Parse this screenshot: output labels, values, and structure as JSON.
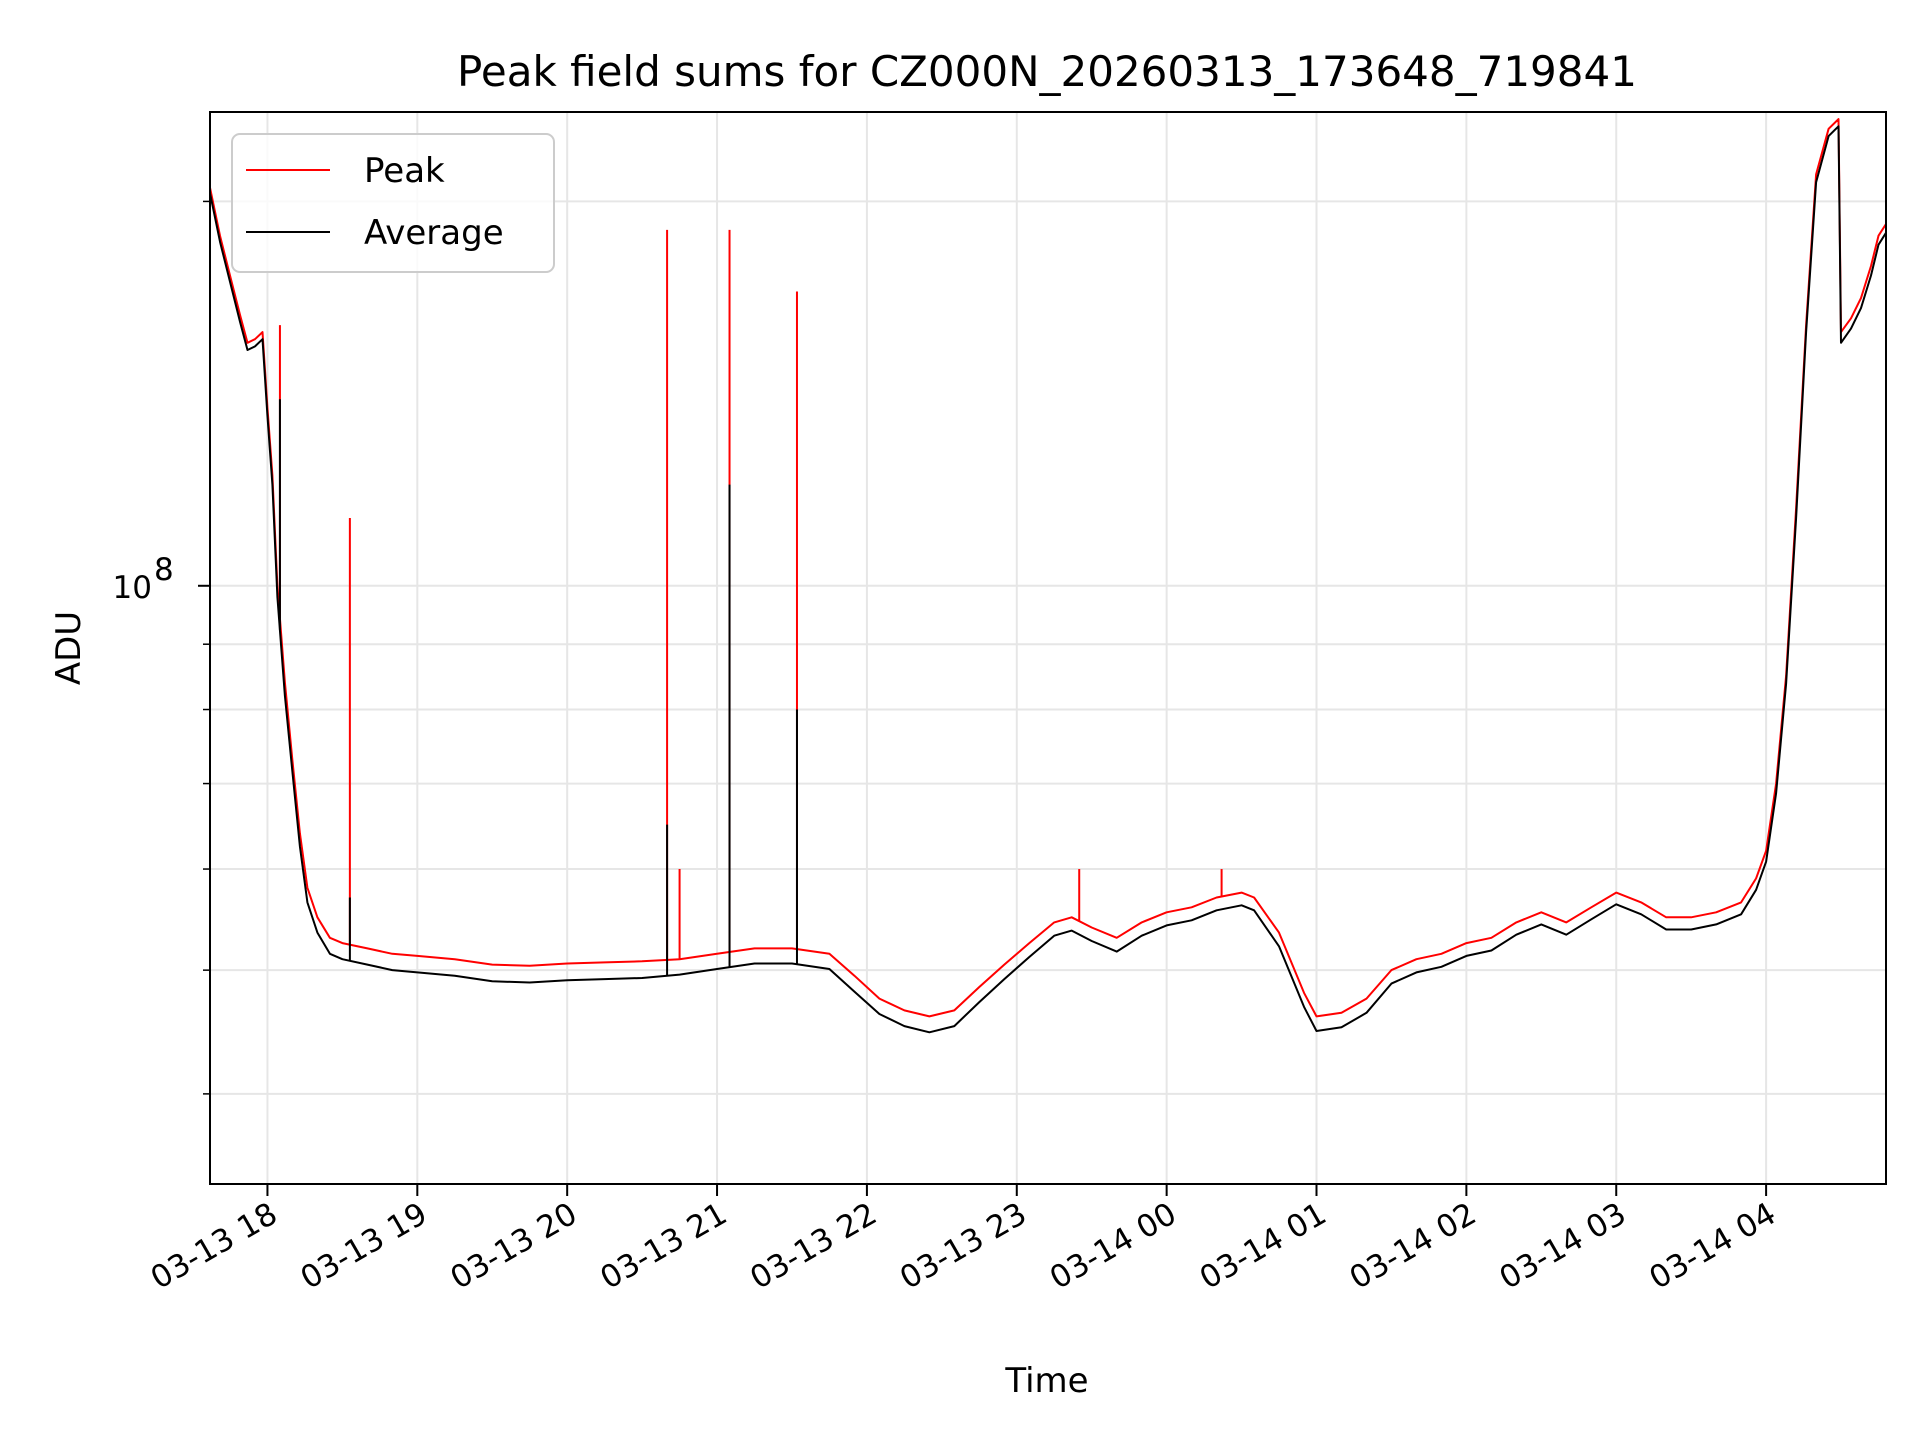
{
  "chart_data": {
    "type": "line",
    "title": "Peak field sums for CZ000N_20260313_173648_719841",
    "xlabel": "Time",
    "ylabel": "ADU",
    "y_scale": "log",
    "xlim": [
      "2026-03-13 17:37",
      "2026-03-14 04:48"
    ],
    "ylim": [
      34000000,
      235000000
    ],
    "grid": true,
    "legend_position": "top-left",
    "x_ticks": [
      "03-13 18",
      "03-13 19",
      "03-13 20",
      "03-13 21",
      "03-13 22",
      "03-13 23",
      "03-14 00",
      "03-14 01",
      "03-14 02",
      "03-14 03",
      "03-14 04"
    ],
    "y_ticks": [
      {
        "label": "10",
        "exponent": "8",
        "value": 100000000
      }
    ],
    "y_minor_ticks": [
      40000000,
      50000000,
      60000000,
      70000000,
      80000000,
      90000000,
      200000000
    ],
    "series": [
      {
        "name": "Peak",
        "color": "#ff0000",
        "points": [
          [
            "2026-03-13 17:37",
            205000000
          ],
          [
            "2026-03-13 17:41",
            188000000
          ],
          [
            "2026-03-13 17:45",
            175000000
          ],
          [
            "2026-03-13 17:49",
            163000000
          ],
          [
            "2026-03-13 17:52",
            155000000
          ],
          [
            "2026-03-13 17:55",
            156000000
          ],
          [
            "2026-03-13 17:58",
            158000000
          ],
          [
            "2026-03-13 18:00",
            138000000
          ],
          [
            "2026-03-13 18:02",
            122000000
          ],
          [
            "2026-03-13 18:04",
            100000000
          ],
          [
            "2026-03-13 18:07",
            84000000
          ],
          [
            "2026-03-13 18:10",
            73000000
          ],
          [
            "2026-03-13 18:13",
            64000000
          ],
          [
            "2026-03-13 18:16",
            58000000
          ],
          [
            "2026-03-13 18:20",
            55000000
          ],
          [
            "2026-03-13 18:25",
            53000000
          ],
          [
            "2026-03-13 18:30",
            52500000
          ],
          [
            "2026-03-13 18:40",
            52000000
          ],
          [
            "2026-03-13 18:50",
            51500000
          ],
          [
            "2026-03-13 19:00",
            51300000
          ],
          [
            "2026-03-13 19:15",
            51000000
          ],
          [
            "2026-03-13 19:30",
            50500000
          ],
          [
            "2026-03-13 19:45",
            50400000
          ],
          [
            "2026-03-13 20:00",
            50600000
          ],
          [
            "2026-03-13 20:15",
            50700000
          ],
          [
            "2026-03-13 20:30",
            50800000
          ],
          [
            "2026-03-13 20:45",
            51000000
          ],
          [
            "2026-03-13 21:00",
            51500000
          ],
          [
            "2026-03-13 21:15",
            52000000
          ],
          [
            "2026-03-13 21:30",
            52000000
          ],
          [
            "2026-03-13 21:45",
            51500000
          ],
          [
            "2026-03-13 21:55",
            49500000
          ],
          [
            "2026-03-13 22:05",
            47500000
          ],
          [
            "2026-03-13 22:15",
            46500000
          ],
          [
            "2026-03-13 22:25",
            46000000
          ],
          [
            "2026-03-13 22:35",
            46500000
          ],
          [
            "2026-03-13 22:45",
            48500000
          ],
          [
            "2026-03-13 22:55",
            50500000
          ],
          [
            "2026-03-13 23:05",
            52500000
          ],
          [
            "2026-03-13 23:15",
            54500000
          ],
          [
            "2026-03-13 23:22",
            55000000
          ],
          [
            "2026-03-13 23:30",
            54000000
          ],
          [
            "2026-03-13 23:40",
            53000000
          ],
          [
            "2026-03-13 23:50",
            54500000
          ],
          [
            "2026-03-14 00:00",
            55500000
          ],
          [
            "2026-03-14 00:10",
            56000000
          ],
          [
            "2026-03-14 00:20",
            57000000
          ],
          [
            "2026-03-14 00:30",
            57500000
          ],
          [
            "2026-03-14 00:35",
            57000000
          ],
          [
            "2026-03-14 00:45",
            53500000
          ],
          [
            "2026-03-14 00:55",
            48000000
          ],
          [
            "2026-03-14 01:00",
            46000000
          ],
          [
            "2026-03-14 01:10",
            46300000
          ],
          [
            "2026-03-14 01:20",
            47500000
          ],
          [
            "2026-03-14 01:30",
            50000000
          ],
          [
            "2026-03-14 01:40",
            51000000
          ],
          [
            "2026-03-14 01:50",
            51500000
          ],
          [
            "2026-03-14 02:00",
            52500000
          ],
          [
            "2026-03-14 02:10",
            53000000
          ],
          [
            "2026-03-14 02:20",
            54500000
          ],
          [
            "2026-03-14 02:30",
            55500000
          ],
          [
            "2026-03-14 02:40",
            54500000
          ],
          [
            "2026-03-14 02:50",
            56000000
          ],
          [
            "2026-03-14 03:00",
            57500000
          ],
          [
            "2026-03-14 03:10",
            56500000
          ],
          [
            "2026-03-14 03:20",
            55000000
          ],
          [
            "2026-03-14 03:30",
            55000000
          ],
          [
            "2026-03-14 03:40",
            55500000
          ],
          [
            "2026-03-14 03:50",
            56500000
          ],
          [
            "2026-03-14 03:56",
            59000000
          ],
          [
            "2026-03-14 04:00",
            62000000
          ],
          [
            "2026-03-14 04:04",
            70000000
          ],
          [
            "2026-03-14 04:08",
            85000000
          ],
          [
            "2026-03-14 04:12",
            115000000
          ],
          [
            "2026-03-14 04:16",
            160000000
          ],
          [
            "2026-03-14 04:20",
            210000000
          ],
          [
            "2026-03-14 04:25",
            228000000
          ],
          [
            "2026-03-14 04:29",
            232000000
          ],
          [
            "2026-03-14 04:30",
            158000000
          ],
          [
            "2026-03-14 04:34",
            162000000
          ],
          [
            "2026-03-14 04:38",
            168000000
          ],
          [
            "2026-03-14 04:42",
            178000000
          ],
          [
            "2026-03-14 04:45",
            188000000
          ],
          [
            "2026-03-14 04:48",
            192000000
          ]
        ],
        "spikes": [
          [
            "2026-03-13 18:05",
            160000000
          ],
          [
            "2026-03-13 18:33",
            113000000
          ],
          [
            "2026-03-13 20:40",
            190000000
          ],
          [
            "2026-03-13 21:05",
            190000000
          ],
          [
            "2026-03-13 21:32",
            170000000
          ],
          [
            "2026-03-13 20:45",
            60000000
          ],
          [
            "2026-03-13 23:25",
            60000000
          ],
          [
            "2026-03-14 00:22",
            60000000
          ]
        ]
      },
      {
        "name": "Average",
        "color": "#000000",
        "points": [
          [
            "2026-03-13 17:37",
            203000000
          ],
          [
            "2026-03-13 17:41",
            186000000
          ],
          [
            "2026-03-13 17:45",
            173000000
          ],
          [
            "2026-03-13 17:49",
            161000000
          ],
          [
            "2026-03-13 17:52",
            153000000
          ],
          [
            "2026-03-13 17:55",
            154000000
          ],
          [
            "2026-03-13 17:58",
            156000000
          ],
          [
            "2026-03-13 18:00",
            136000000
          ],
          [
            "2026-03-13 18:02",
            120000000
          ],
          [
            "2026-03-13 18:04",
            98000000
          ],
          [
            "2026-03-13 18:07",
            82000000
          ],
          [
            "2026-03-13 18:10",
            71500000
          ],
          [
            "2026-03-13 18:13",
            62500000
          ],
          [
            "2026-03-13 18:16",
            56500000
          ],
          [
            "2026-03-13 18:20",
            53500000
          ],
          [
            "2026-03-13 18:25",
            51500000
          ],
          [
            "2026-03-13 18:30",
            51000000
          ],
          [
            "2026-03-13 18:40",
            50500000
          ],
          [
            "2026-03-13 18:50",
            50000000
          ],
          [
            "2026-03-13 19:00",
            49800000
          ],
          [
            "2026-03-13 19:15",
            49500000
          ],
          [
            "2026-03-13 19:30",
            49000000
          ],
          [
            "2026-03-13 19:45",
            48900000
          ],
          [
            "2026-03-13 20:00",
            49100000
          ],
          [
            "2026-03-13 20:15",
            49200000
          ],
          [
            "2026-03-13 20:30",
            49300000
          ],
          [
            "2026-03-13 20:45",
            49600000
          ],
          [
            "2026-03-13 21:00",
            50100000
          ],
          [
            "2026-03-13 21:15",
            50600000
          ],
          [
            "2026-03-13 21:30",
            50600000
          ],
          [
            "2026-03-13 21:45",
            50100000
          ],
          [
            "2026-03-13 21:55",
            48100000
          ],
          [
            "2026-03-13 22:05",
            46200000
          ],
          [
            "2026-03-13 22:15",
            45200000
          ],
          [
            "2026-03-13 22:25",
            44700000
          ],
          [
            "2026-03-13 22:35",
            45200000
          ],
          [
            "2026-03-13 22:45",
            47200000
          ],
          [
            "2026-03-13 22:55",
            49200000
          ],
          [
            "2026-03-13 23:05",
            51200000
          ],
          [
            "2026-03-13 23:15",
            53200000
          ],
          [
            "2026-03-13 23:22",
            53700000
          ],
          [
            "2026-03-13 23:30",
            52700000
          ],
          [
            "2026-03-13 23:40",
            51700000
          ],
          [
            "2026-03-13 23:50",
            53200000
          ],
          [
            "2026-03-14 00:00",
            54200000
          ],
          [
            "2026-03-14 00:10",
            54700000
          ],
          [
            "2026-03-14 00:20",
            55700000
          ],
          [
            "2026-03-14 00:30",
            56200000
          ],
          [
            "2026-03-14 00:35",
            55700000
          ],
          [
            "2026-03-14 00:45",
            52200000
          ],
          [
            "2026-03-14 00:55",
            46800000
          ],
          [
            "2026-03-14 01:00",
            44800000
          ],
          [
            "2026-03-14 01:10",
            45100000
          ],
          [
            "2026-03-14 01:20",
            46300000
          ],
          [
            "2026-03-14 01:30",
            48800000
          ],
          [
            "2026-03-14 01:40",
            49800000
          ],
          [
            "2026-03-14 01:50",
            50300000
          ],
          [
            "2026-03-14 02:00",
            51300000
          ],
          [
            "2026-03-14 02:10",
            51800000
          ],
          [
            "2026-03-14 02:20",
            53300000
          ],
          [
            "2026-03-14 02:30",
            54300000
          ],
          [
            "2026-03-14 02:40",
            53300000
          ],
          [
            "2026-03-14 02:50",
            54800000
          ],
          [
            "2026-03-14 03:00",
            56300000
          ],
          [
            "2026-03-14 03:10",
            55300000
          ],
          [
            "2026-03-14 03:20",
            53800000
          ],
          [
            "2026-03-14 03:30",
            53800000
          ],
          [
            "2026-03-14 03:40",
            54300000
          ],
          [
            "2026-03-14 03:50",
            55300000
          ],
          [
            "2026-03-14 03:56",
            57800000
          ],
          [
            "2026-03-14 04:00",
            60800000
          ],
          [
            "2026-03-14 04:04",
            68800000
          ],
          [
            "2026-03-14 04:08",
            83800000
          ],
          [
            "2026-03-14 04:12",
            113000000
          ],
          [
            "2026-03-14 04:16",
            158000000
          ],
          [
            "2026-03-14 04:20",
            207000000
          ],
          [
            "2026-03-14 04:25",
            225000000
          ],
          [
            "2026-03-14 04:29",
            229000000
          ],
          [
            "2026-03-14 04:30",
            155000000
          ],
          [
            "2026-03-14 04:34",
            159000000
          ],
          [
            "2026-03-14 04:38",
            165000000
          ],
          [
            "2026-03-14 04:42",
            175000000
          ],
          [
            "2026-03-14 04:45",
            185000000
          ],
          [
            "2026-03-14 04:48",
            189000000
          ]
        ],
        "spikes": [
          [
            "2026-03-13 18:05",
            140000000
          ],
          [
            "2026-03-13 18:33",
            57000000
          ],
          [
            "2026-03-13 20:40",
            65000000
          ],
          [
            "2026-03-13 21:05",
            120000000
          ],
          [
            "2026-03-13 21:32",
            80000000
          ]
        ]
      }
    ]
  }
}
